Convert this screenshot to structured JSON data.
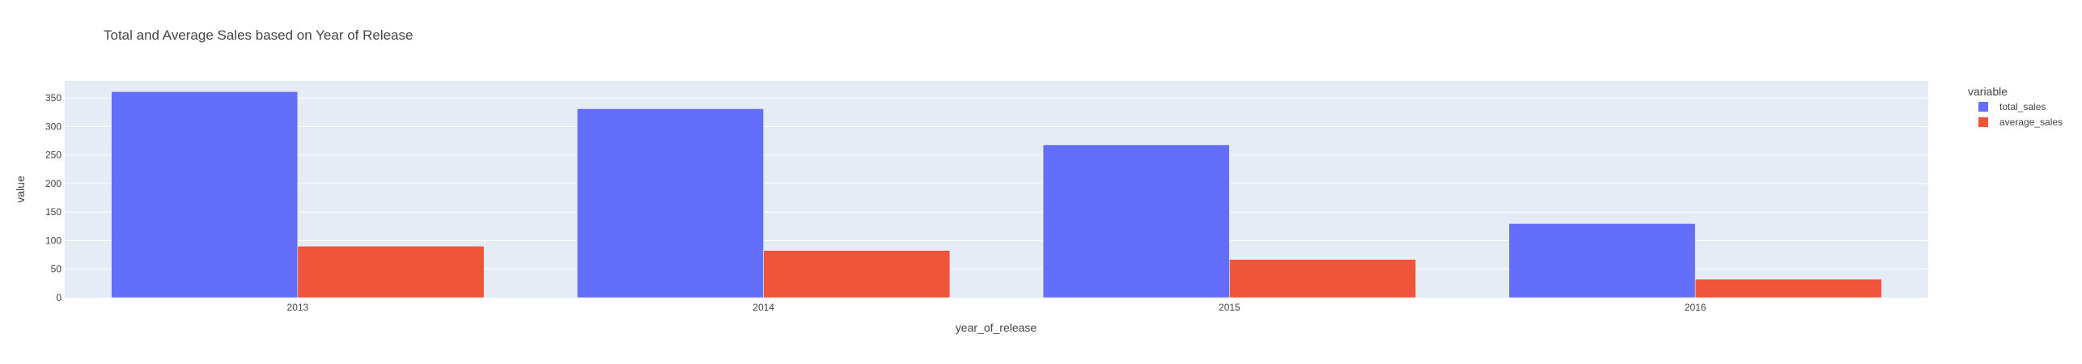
{
  "chart_data": {
    "type": "bar",
    "title": "Total and Average Sales based on Year of Release",
    "xlabel": "year_of_release",
    "ylabel": "value",
    "categories": [
      "2013",
      "2014",
      "2015",
      "2016"
    ],
    "series": [
      {
        "name": "total_sales",
        "values": [
          361.2,
          331.2,
          267.98,
          129.94
        ],
        "color": "#636efa"
      },
      {
        "name": "average_sales",
        "values": [
          90.3,
          82.8,
          66.99,
          32.49
        ],
        "color": "#ef553b"
      }
    ],
    "ylim": [
      0,
      380
    ],
    "yticks": [
      0,
      50,
      100,
      150,
      200,
      250,
      300,
      350
    ],
    "ytick_labels": [
      "0",
      "50",
      "100",
      "150",
      "200",
      "250",
      "300",
      "350"
    ],
    "grid": true,
    "legend_title": "variable",
    "legend_position": "top-right",
    "plot_background": "#e5ecf6"
  }
}
